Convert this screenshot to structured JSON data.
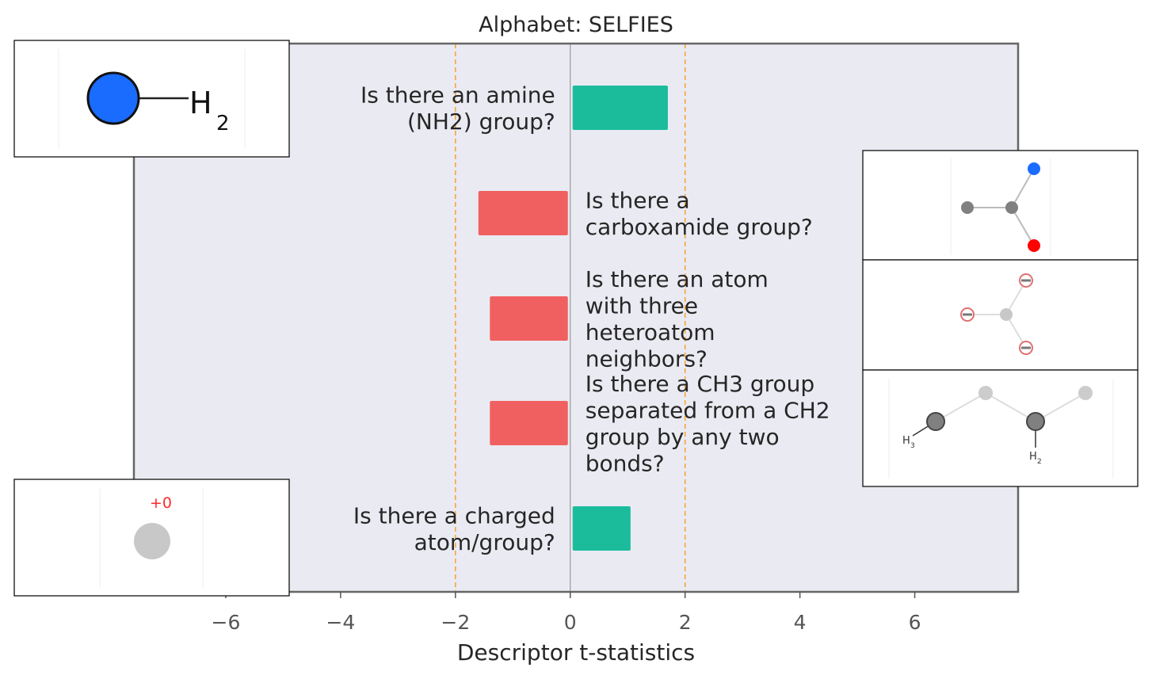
{
  "chart_data": {
    "type": "bar",
    "orientation": "horizontal",
    "title": "Alphabet: SELFIES",
    "xlabel": "Descriptor t-statistics",
    "ylabel": "",
    "xlim": [
      -7.6,
      7.8
    ],
    "xticks": [
      -6,
      -4,
      -2,
      0,
      2,
      4,
      6
    ],
    "xtick_labels": [
      "−6",
      "−4",
      "−2",
      "0",
      "2",
      "4",
      "6"
    ],
    "significance_lines": [
      -2,
      2
    ],
    "grid": false,
    "categories": [
      {
        "lines": [
          "Is there an amine",
          "(NH2) group?"
        ],
        "value": 1.7
      },
      {
        "lines": [
          "Is there a",
          "carboxamide group?"
        ],
        "value": -1.6
      },
      {
        "lines": [
          "Is there an atom",
          "with three",
          "heteroatom",
          "neighbors?"
        ],
        "value": -1.4
      },
      {
        "lines": [
          "Is there a CH3 group",
          "separated from a CH2",
          "group by any two",
          "bonds?"
        ],
        "value": -1.4
      },
      {
        "lines": [
          "Is there a charged",
          "atom/group?"
        ],
        "value": 1.05
      }
    ],
    "colors": {
      "positive": "#1abc9c",
      "negative": "#f06060",
      "axes_bg": "#eaeaf2",
      "axes_edge": "#666666",
      "zero_line": "#999999",
      "sig_line": "#f5a53a"
    }
  },
  "molecule_insets": [
    {
      "name": "amine-nh2",
      "labels": [
        "H",
        "2"
      ],
      "colors": {
        "atom": "#1a6cff",
        "outline": "#111111"
      }
    },
    {
      "name": "carboxamide",
      "labels": [],
      "colors": {
        "n": "#1a6cff",
        "o": "#ff0000",
        "c": "#808080"
      }
    },
    {
      "name": "three-heteroatom",
      "labels": [],
      "colors": {
        "ring": "#e07070",
        "c": "#c8c8c8"
      }
    },
    {
      "name": "ch3-ch2",
      "labels": [
        "H",
        "3",
        "H",
        "2"
      ],
      "colors": {
        "c": "#808080",
        "light": "#cccccc"
      }
    },
    {
      "name": "charged-atom",
      "labels": [
        "+0"
      ],
      "colors": {
        "charge": "#ff2a2a",
        "atom": "#c8c8c8"
      }
    }
  ]
}
